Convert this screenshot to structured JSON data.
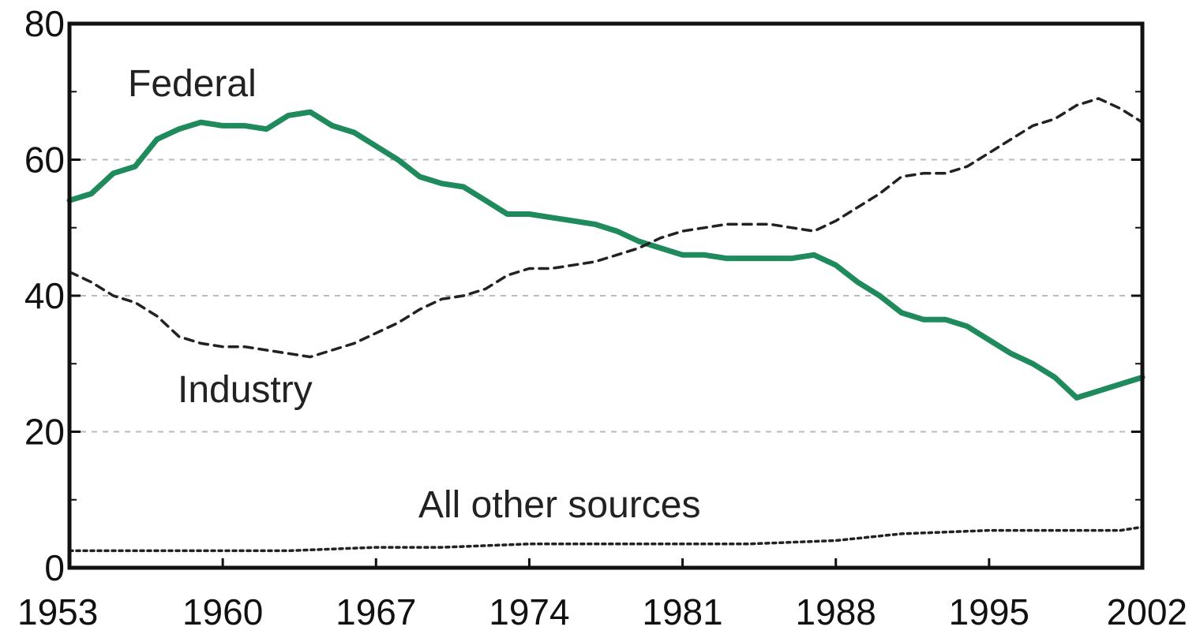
{
  "chart_data": {
    "type": "line",
    "title": "",
    "xlabel": "",
    "ylabel": "",
    "xlim": [
      1953,
      2002
    ],
    "ylim": [
      0,
      80
    ],
    "x_ticks": [
      1953,
      1960,
      1967,
      1974,
      1981,
      1988,
      1995,
      2002
    ],
    "x_tick_labels": [
      "1953",
      "1960",
      "1967",
      "1974",
      "1981",
      "1988",
      "1995",
      "2002"
    ],
    "y_ticks": [
      0,
      20,
      40,
      60,
      80
    ],
    "y_tick_labels": [
      "0",
      "20",
      "40",
      "60",
      "80"
    ],
    "y_minor_ticks": [
      10,
      30,
      50,
      70
    ],
    "grid": {
      "horizontal": true,
      "style": "dashed"
    },
    "legend": "none",
    "series": [
      {
        "name": "Federal",
        "color": "#1f8a5c",
        "line_style": "solid",
        "x": [
          1953,
          1954,
          1955,
          1956,
          1957,
          1958,
          1959,
          1960,
          1961,
          1962,
          1963,
          1964,
          1965,
          1966,
          1967,
          1968,
          1969,
          1970,
          1971,
          1972,
          1973,
          1974,
          1975,
          1976,
          1977,
          1978,
          1979,
          1980,
          1981,
          1982,
          1983,
          1984,
          1985,
          1986,
          1987,
          1988,
          1989,
          1990,
          1991,
          1992,
          1993,
          1994,
          1995,
          1996,
          1997,
          1998,
          1999,
          2000,
          2001,
          2002
        ],
        "y": [
          54,
          55,
          58,
          59,
          63,
          64.5,
          65.5,
          65,
          65,
          64.5,
          66.5,
          67,
          65,
          64,
          62,
          60,
          57.5,
          56.5,
          56,
          54,
          52,
          52,
          51.5,
          51,
          50.5,
          49.5,
          48,
          47,
          46,
          46,
          45.5,
          45.5,
          45.5,
          45.5,
          46,
          44.5,
          42,
          40,
          37.5,
          36.5,
          36.5,
          35.5,
          33.5,
          31.5,
          30,
          28,
          25,
          26,
          27,
          28
        ]
      },
      {
        "name": "Industry",
        "color": "#222222",
        "line_style": "dashed",
        "x": [
          1953,
          1954,
          1955,
          1956,
          1957,
          1958,
          1959,
          1960,
          1961,
          1962,
          1963,
          1964,
          1965,
          1966,
          1967,
          1968,
          1969,
          1970,
          1971,
          1972,
          1973,
          1974,
          1975,
          1976,
          1977,
          1978,
          1979,
          1980,
          1981,
          1982,
          1983,
          1984,
          1985,
          1986,
          1987,
          1988,
          1989,
          1990,
          1991,
          1992,
          1993,
          1994,
          1995,
          1996,
          1997,
          1998,
          1999,
          2000,
          2001,
          2002
        ],
        "y": [
          43.5,
          42,
          40,
          39,
          37,
          34,
          33,
          32.5,
          32.5,
          32,
          31.5,
          31,
          32,
          33,
          34.5,
          36,
          38,
          39.5,
          40,
          41,
          43,
          44,
          44,
          44.5,
          45,
          46,
          47,
          48.5,
          49.5,
          50,
          50.5,
          50.5,
          50.5,
          50,
          49.5,
          51,
          53,
          55,
          57.5,
          58,
          58,
          59,
          61,
          63,
          65,
          66,
          68,
          69,
          67.5,
          65.5
        ]
      },
      {
        "name": "All other sources",
        "color": "#222222",
        "line_style": "dotted",
        "x": [
          1953,
          1956,
          1960,
          1963,
          1967,
          1970,
          1974,
          1978,
          1981,
          1984,
          1988,
          1991,
          1995,
          1998,
          2001,
          2002
        ],
        "y": [
          2.5,
          2.5,
          2.5,
          2.5,
          3,
          3,
          3.5,
          3.5,
          3.5,
          3.5,
          4,
          5,
          5.5,
          5.5,
          5.5,
          6
        ]
      }
    ]
  }
}
